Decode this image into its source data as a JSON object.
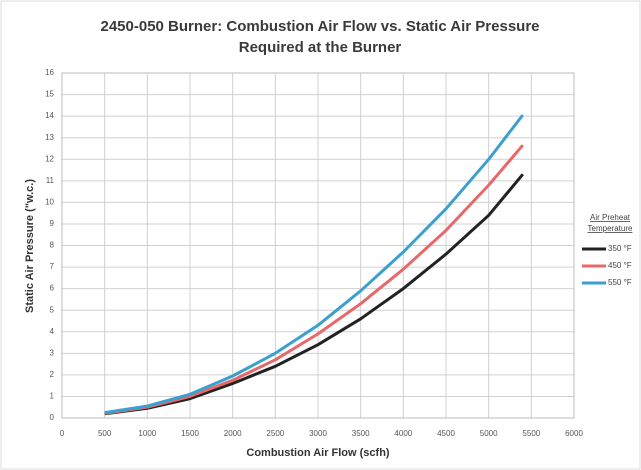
{
  "chart_data": {
    "type": "line",
    "title": [
      "2450-050 Burner: Combustion Air Flow vs. Static Air Pressure",
      "Required at the Burner"
    ],
    "x_label": "Combustion Air Flow (scfh)",
    "y_label": "Static Air Pressure (\"w.c.)",
    "legend_title": [
      "Air Preheat",
      "Temperature"
    ],
    "legend": "right",
    "grid": true,
    "x": [
      500,
      1000,
      1500,
      2000,
      2500,
      3000,
      3500,
      4000,
      4500,
      5000,
      5400
    ],
    "series": [
      {
        "name": "350 °F",
        "color": "#222222",
        "values": [
          0.2,
          0.45,
          0.9,
          1.6,
          2.4,
          3.4,
          4.6,
          6.0,
          7.6,
          9.4,
          11.3
        ]
      },
      {
        "name": "450 °F",
        "color": "#e8686a",
        "values": [
          0.22,
          0.5,
          1.0,
          1.75,
          2.7,
          3.9,
          5.3,
          6.9,
          8.7,
          10.8,
          12.65
        ]
      },
      {
        "name": "550 °F",
        "color": "#3aa0d0",
        "values": [
          0.25,
          0.55,
          1.1,
          1.95,
          3.0,
          4.3,
          5.9,
          7.7,
          9.7,
          12.0,
          14.05
        ]
      }
    ],
    "xlim": [
      0,
      6000
    ],
    "xticks": [
      0,
      500,
      1000,
      1500,
      2000,
      2500,
      3000,
      3500,
      4000,
      4500,
      5000,
      5500,
      6000
    ],
    "ylim": [
      0,
      16
    ],
    "yticks": [
      0,
      1,
      2,
      3,
      4,
      5,
      6,
      7,
      8,
      9,
      10,
      11,
      12,
      13,
      14,
      15,
      16
    ]
  }
}
